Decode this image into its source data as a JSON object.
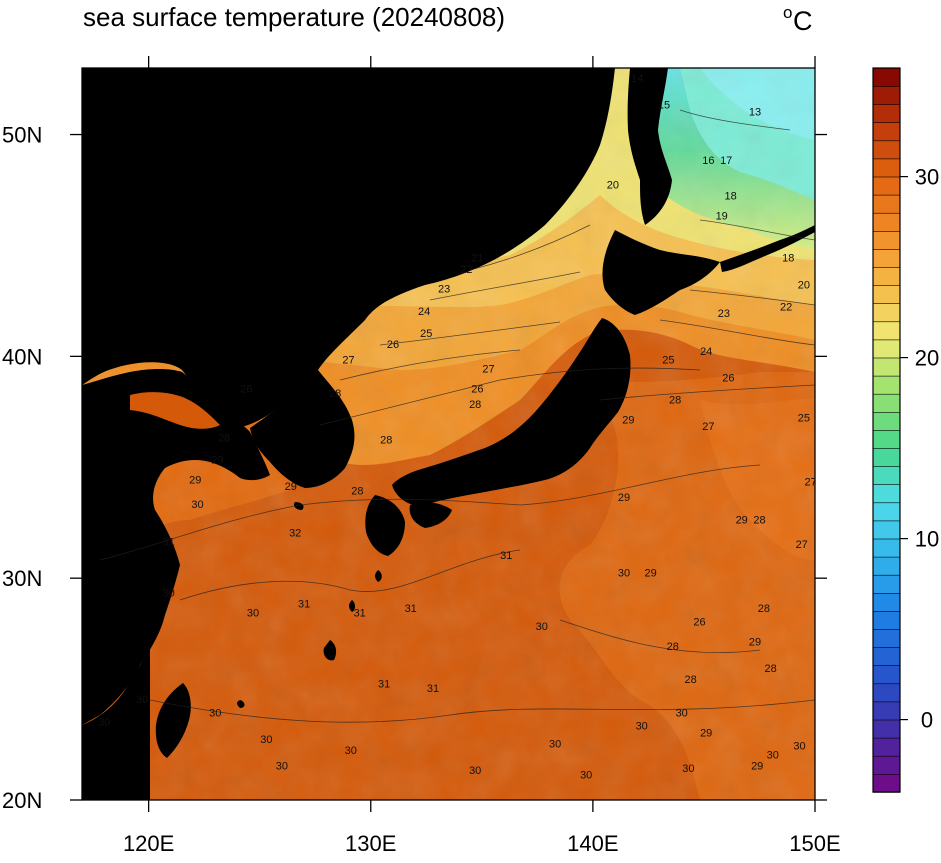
{
  "title": "sea surface temperature (20240808)",
  "units": {
    "base": "o",
    "letter": "C"
  },
  "map": {
    "lon_range": [
      117,
      150
    ],
    "lat_range": [
      20,
      53
    ],
    "lon_ticks": [
      {
        "value": 120,
        "label": "120E"
      },
      {
        "value": 130,
        "label": "130E"
      },
      {
        "value": 140,
        "label": "140E"
      },
      {
        "value": 150,
        "label": "150E"
      }
    ],
    "lat_ticks": [
      {
        "value": 50,
        "label": "50N"
      },
      {
        "value": 40,
        "label": "40N"
      },
      {
        "value": 30,
        "label": "30N"
      },
      {
        "value": 20,
        "label": "20N"
      }
    ],
    "land_color": "#000000",
    "contour_labels": [
      {
        "lon": 142.0,
        "lat": 52.5,
        "text": "14"
      },
      {
        "lon": 143.2,
        "lat": 51.3,
        "text": "15"
      },
      {
        "lon": 147.3,
        "lat": 51.0,
        "text": "13"
      },
      {
        "lon": 145.2,
        "lat": 48.8,
        "text": "16"
      },
      {
        "lon": 146.0,
        "lat": 48.8,
        "text": "17"
      },
      {
        "lon": 146.2,
        "lat": 47.2,
        "text": "18"
      },
      {
        "lon": 145.8,
        "lat": 46.3,
        "text": "19"
      },
      {
        "lon": 148.8,
        "lat": 44.4,
        "text": "18"
      },
      {
        "lon": 140.9,
        "lat": 47.7,
        "text": "20"
      },
      {
        "lon": 149.5,
        "lat": 43.2,
        "text": "20"
      },
      {
        "lon": 148.7,
        "lat": 42.2,
        "text": "22"
      },
      {
        "lon": 134.8,
        "lat": 44.4,
        "text": "21"
      },
      {
        "lon": 134.3,
        "lat": 43.9,
        "text": "22"
      },
      {
        "lon": 133.3,
        "lat": 43.0,
        "text": "23"
      },
      {
        "lon": 145.9,
        "lat": 41.9,
        "text": "23"
      },
      {
        "lon": 132.4,
        "lat": 42.0,
        "text": "24"
      },
      {
        "lon": 132.5,
        "lat": 41.0,
        "text": "25"
      },
      {
        "lon": 143.4,
        "lat": 39.8,
        "text": "25"
      },
      {
        "lon": 145.1,
        "lat": 40.2,
        "text": "24"
      },
      {
        "lon": 131.0,
        "lat": 40.5,
        "text": "26"
      },
      {
        "lon": 146.1,
        "lat": 39.0,
        "text": "26"
      },
      {
        "lon": 129.0,
        "lat": 39.8,
        "text": "27"
      },
      {
        "lon": 135.3,
        "lat": 39.4,
        "text": "27"
      },
      {
        "lon": 145.2,
        "lat": 36.8,
        "text": "27"
      },
      {
        "lon": 134.8,
        "lat": 38.5,
        "text": "26"
      },
      {
        "lon": 124.4,
        "lat": 38.5,
        "text": "26"
      },
      {
        "lon": 128.4,
        "lat": 38.3,
        "text": "28"
      },
      {
        "lon": 134.7,
        "lat": 37.8,
        "text": "28"
      },
      {
        "lon": 143.7,
        "lat": 38.0,
        "text": "28"
      },
      {
        "lon": 141.6,
        "lat": 37.1,
        "text": "29"
      },
      {
        "lon": 149.5,
        "lat": 37.2,
        "text": "25"
      },
      {
        "lon": 149.8,
        "lat": 34.3,
        "text": "27"
      },
      {
        "lon": 123.4,
        "lat": 36.3,
        "text": "28"
      },
      {
        "lon": 123.1,
        "lat": 35.3,
        "text": "29"
      },
      {
        "lon": 122.1,
        "lat": 34.4,
        "text": "29"
      },
      {
        "lon": 126.4,
        "lat": 34.1,
        "text": "29"
      },
      {
        "lon": 129.4,
        "lat": 33.9,
        "text": "28"
      },
      {
        "lon": 130.7,
        "lat": 36.2,
        "text": "28"
      },
      {
        "lon": 141.4,
        "lat": 33.6,
        "text": "29"
      },
      {
        "lon": 122.2,
        "lat": 33.3,
        "text": "30"
      },
      {
        "lon": 126.6,
        "lat": 32.0,
        "text": "32"
      },
      {
        "lon": 120.9,
        "lat": 31.6,
        "text": "31"
      },
      {
        "lon": 146.7,
        "lat": 32.6,
        "text": "29"
      },
      {
        "lon": 147.5,
        "lat": 32.6,
        "text": "28"
      },
      {
        "lon": 149.4,
        "lat": 31.5,
        "text": "27"
      },
      {
        "lon": 136.1,
        "lat": 31.0,
        "text": "31"
      },
      {
        "lon": 141.4,
        "lat": 30.2,
        "text": "30"
      },
      {
        "lon": 142.6,
        "lat": 30.2,
        "text": "29"
      },
      {
        "lon": 147.7,
        "lat": 28.6,
        "text": "28"
      },
      {
        "lon": 144.8,
        "lat": 28.0,
        "text": "26"
      },
      {
        "lon": 120.9,
        "lat": 29.3,
        "text": "30"
      },
      {
        "lon": 127.0,
        "lat": 28.8,
        "text": "31"
      },
      {
        "lon": 124.7,
        "lat": 28.4,
        "text": "30"
      },
      {
        "lon": 129.5,
        "lat": 28.4,
        "text": "31"
      },
      {
        "lon": 131.8,
        "lat": 28.6,
        "text": "31"
      },
      {
        "lon": 137.7,
        "lat": 27.8,
        "text": "30"
      },
      {
        "lon": 143.6,
        "lat": 26.9,
        "text": "28"
      },
      {
        "lon": 147.3,
        "lat": 27.1,
        "text": "29"
      },
      {
        "lon": 144.4,
        "lat": 25.4,
        "text": "28"
      },
      {
        "lon": 148.0,
        "lat": 25.9,
        "text": "28"
      },
      {
        "lon": 130.6,
        "lat": 25.2,
        "text": "31"
      },
      {
        "lon": 132.8,
        "lat": 25.0,
        "text": "31"
      },
      {
        "lon": 119.7,
        "lat": 24.5,
        "text": "30"
      },
      {
        "lon": 118.0,
        "lat": 23.5,
        "text": "30"
      },
      {
        "lon": 123.0,
        "lat": 23.9,
        "text": "30"
      },
      {
        "lon": 142.2,
        "lat": 23.3,
        "text": "30"
      },
      {
        "lon": 125.3,
        "lat": 22.7,
        "text": "30"
      },
      {
        "lon": 138.3,
        "lat": 22.5,
        "text": "30"
      },
      {
        "lon": 126.0,
        "lat": 21.5,
        "text": "30"
      },
      {
        "lon": 129.1,
        "lat": 22.2,
        "text": "30"
      },
      {
        "lon": 139.7,
        "lat": 21.1,
        "text": "30"
      },
      {
        "lon": 144.0,
        "lat": 23.9,
        "text": "30"
      },
      {
        "lon": 148.1,
        "lat": 22.0,
        "text": "30"
      },
      {
        "lon": 149.3,
        "lat": 22.4,
        "text": "30"
      },
      {
        "lon": 147.4,
        "lat": 21.5,
        "text": "29"
      },
      {
        "lon": 134.7,
        "lat": 21.3,
        "text": "30"
      },
      {
        "lon": 144.3,
        "lat": 21.4,
        "text": "30"
      },
      {
        "lon": 145.1,
        "lat": 23.0,
        "text": "29"
      }
    ]
  },
  "colorbar": {
    "vmin": -4,
    "vmax": 36,
    "step": 1,
    "tick_labels": [
      {
        "value": 30,
        "label": "30"
      },
      {
        "value": 20,
        "label": "20"
      },
      {
        "value": 10,
        "label": "10"
      },
      {
        "value": 0,
        "label": "0"
      }
    ]
  }
}
